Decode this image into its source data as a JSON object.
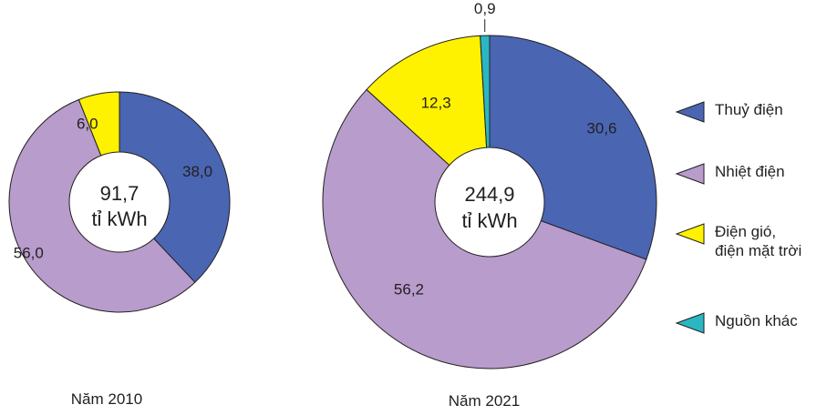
{
  "chart_data": [
    {
      "type": "pie",
      "donut": true,
      "center_value": "91,7",
      "center_unit": "tỉ kWh",
      "year_label": "Năm 2010",
      "categories": [
        "Thuỷ điện",
        "Nhiệt điện",
        "Điện gió, điện mặt trời"
      ],
      "values": [
        38.0,
        56.0,
        6.0
      ],
      "value_labels": [
        "38,0",
        "56,0",
        "6,0"
      ]
    },
    {
      "type": "pie",
      "donut": true,
      "center_value": "244,9",
      "center_unit": "tỉ kWh",
      "year_label": "Năm 2021",
      "categories": [
        "Thuỷ điện",
        "Nhiệt điện",
        "Điện gió, điện mặt trời",
        "Nguồn khác"
      ],
      "values": [
        30.6,
        56.2,
        12.3,
        0.9
      ],
      "value_labels": [
        "30,6",
        "56,2",
        "12,3",
        "0,9"
      ]
    }
  ],
  "legend": [
    {
      "label": "Thuỷ điện",
      "color": "#4a65b2"
    },
    {
      "label": "Nhiệt điện",
      "color": "#b79ccc"
    },
    {
      "label": "Điện gió,\nđiện mặt trời",
      "color": "#fff200"
    },
    {
      "label": "Nguồn khác",
      "color": "#2ab7c2"
    }
  ],
  "colors": [
    "#4a65b2",
    "#b79ccc",
    "#fff200",
    "#2ab7c2"
  ]
}
